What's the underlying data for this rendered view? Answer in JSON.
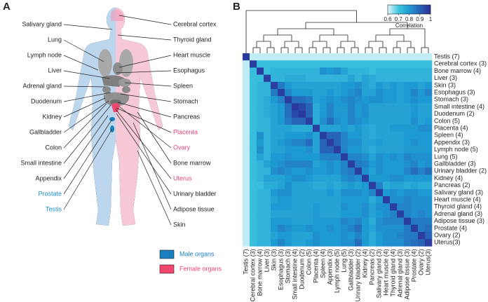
{
  "panel_a": {
    "letter": "A",
    "left_labels": [
      "Salivary gland",
      "Lung",
      "Lymph node",
      "Liver",
      "Adrenal gland",
      "Duodenum",
      "Kidney",
      "Gallbladder",
      "Colon",
      "Small intestine",
      "Appendix",
      "Prostate",
      "Testis"
    ],
    "right_labels": [
      "Cerebral cortex",
      "Thyroid gland",
      "Heart muscle",
      "Esophagus",
      "Spleen",
      "Stomach",
      "Pancreas",
      "Placenta",
      "Ovary",
      "Bone marrow",
      "Uterus",
      "Urinary bladder",
      "Adipose tissue",
      "Skin"
    ],
    "legend": [
      {
        "name": "Male organs",
        "color": "#1a7fc1"
      },
      {
        "name": "Female organs",
        "color": "#f0476e"
      }
    ]
  },
  "chart_data": {
    "type": "heatmap",
    "panel_letter": "B",
    "labels": [
      "Testis (7)",
      "Cerebral cortex (3)",
      "Bone marrow (4)",
      "Liver (3)",
      "Skin (3)",
      "Esophagus (3)",
      "Stomach (3)",
      "Small intestine (4)",
      "Duodenum (2)",
      "Colon (5)",
      "Placenta (4)",
      "Spleen (4)",
      "Appendix (3)",
      "Lymph node (5)",
      "Lung (5)",
      "Gallbladder (3)",
      "Urinary bladder (2)",
      "Kidney (4)",
      "Pancreas (2)",
      "Salivary gland (3)",
      "Heart muscle (4)",
      "Thyroid gland (4)",
      "Adrenal gland (3)",
      "Adipose tissue (3)",
      "Prostate (4)",
      "Ovary (2)",
      "Uterus(3)"
    ],
    "colorbar": {
      "label": "Correlation",
      "lim": [
        0.6,
        1
      ],
      "ticks": [
        0.6,
        0.7,
        0.8,
        0.9,
        1
      ],
      "colors": [
        "#e0f6fa",
        "#3fc6df",
        "#1e9ad2",
        "#2763b7",
        "#2b2e96"
      ]
    },
    "values": [
      [
        0.98,
        0.62,
        0.62,
        0.62,
        0.62,
        0.62,
        0.62,
        0.62,
        0.62,
        0.62,
        0.62,
        0.62,
        0.62,
        0.62,
        0.62,
        0.62,
        0.62,
        0.62,
        0.62,
        0.62,
        0.62,
        0.62,
        0.62,
        0.62,
        0.62,
        0.62,
        0.62
      ],
      [
        0.62,
        0.97,
        0.72,
        0.72,
        0.72,
        0.72,
        0.72,
        0.72,
        0.72,
        0.72,
        0.72,
        0.72,
        0.72,
        0.72,
        0.72,
        0.72,
        0.72,
        0.72,
        0.72,
        0.72,
        0.72,
        0.72,
        0.72,
        0.72,
        0.72,
        0.72,
        0.72
      ],
      [
        0.62,
        0.72,
        0.97,
        0.72,
        0.74,
        0.74,
        0.74,
        0.74,
        0.74,
        0.74,
        0.74,
        0.82,
        0.8,
        0.82,
        0.78,
        0.74,
        0.74,
        0.74,
        0.72,
        0.74,
        0.74,
        0.74,
        0.74,
        0.74,
        0.74,
        0.74,
        0.74
      ],
      [
        0.62,
        0.72,
        0.72,
        0.97,
        0.74,
        0.74,
        0.76,
        0.76,
        0.76,
        0.74,
        0.74,
        0.74,
        0.74,
        0.74,
        0.74,
        0.78,
        0.74,
        0.78,
        0.76,
        0.74,
        0.74,
        0.74,
        0.74,
        0.74,
        0.74,
        0.74,
        0.74
      ],
      [
        0.62,
        0.72,
        0.74,
        0.74,
        0.97,
        0.86,
        0.8,
        0.78,
        0.78,
        0.78,
        0.78,
        0.78,
        0.78,
        0.78,
        0.8,
        0.8,
        0.82,
        0.78,
        0.76,
        0.8,
        0.78,
        0.8,
        0.78,
        0.8,
        0.8,
        0.78,
        0.8
      ],
      [
        0.62,
        0.72,
        0.74,
        0.74,
        0.86,
        0.97,
        0.84,
        0.8,
        0.8,
        0.8,
        0.78,
        0.78,
        0.8,
        0.78,
        0.8,
        0.82,
        0.84,
        0.78,
        0.78,
        0.82,
        0.8,
        0.8,
        0.78,
        0.8,
        0.84,
        0.8,
        0.84
      ],
      [
        0.62,
        0.72,
        0.74,
        0.76,
        0.8,
        0.84,
        0.97,
        0.88,
        0.88,
        0.86,
        0.78,
        0.8,
        0.82,
        0.8,
        0.82,
        0.84,
        0.82,
        0.8,
        0.82,
        0.82,
        0.8,
        0.8,
        0.78,
        0.8,
        0.82,
        0.8,
        0.8
      ],
      [
        0.62,
        0.72,
        0.74,
        0.76,
        0.78,
        0.8,
        0.88,
        0.98,
        0.95,
        0.9,
        0.76,
        0.8,
        0.84,
        0.8,
        0.8,
        0.84,
        0.8,
        0.82,
        0.78,
        0.78,
        0.78,
        0.78,
        0.78,
        0.78,
        0.8,
        0.78,
        0.78
      ],
      [
        0.62,
        0.72,
        0.74,
        0.76,
        0.78,
        0.8,
        0.88,
        0.95,
        0.98,
        0.9,
        0.76,
        0.8,
        0.84,
        0.8,
        0.8,
        0.84,
        0.8,
        0.82,
        0.78,
        0.78,
        0.78,
        0.78,
        0.78,
        0.78,
        0.8,
        0.78,
        0.78
      ],
      [
        0.62,
        0.72,
        0.74,
        0.74,
        0.78,
        0.8,
        0.86,
        0.9,
        0.9,
        0.97,
        0.76,
        0.82,
        0.88,
        0.82,
        0.8,
        0.84,
        0.82,
        0.8,
        0.78,
        0.78,
        0.78,
        0.78,
        0.78,
        0.78,
        0.82,
        0.78,
        0.8
      ],
      [
        0.62,
        0.72,
        0.74,
        0.74,
        0.78,
        0.78,
        0.78,
        0.76,
        0.76,
        0.76,
        0.97,
        0.78,
        0.78,
        0.78,
        0.8,
        0.78,
        0.8,
        0.78,
        0.76,
        0.78,
        0.78,
        0.8,
        0.8,
        0.8,
        0.8,
        0.82,
        0.82
      ],
      [
        0.62,
        0.72,
        0.82,
        0.74,
        0.78,
        0.78,
        0.8,
        0.8,
        0.8,
        0.82,
        0.78,
        0.97,
        0.9,
        0.9,
        0.84,
        0.8,
        0.8,
        0.78,
        0.76,
        0.78,
        0.78,
        0.78,
        0.78,
        0.8,
        0.8,
        0.8,
        0.8
      ],
      [
        0.62,
        0.72,
        0.8,
        0.74,
        0.78,
        0.8,
        0.82,
        0.84,
        0.84,
        0.88,
        0.78,
        0.9,
        0.97,
        0.9,
        0.84,
        0.82,
        0.82,
        0.78,
        0.78,
        0.8,
        0.78,
        0.78,
        0.78,
        0.8,
        0.82,
        0.8,
        0.8
      ],
      [
        0.62,
        0.72,
        0.82,
        0.74,
        0.78,
        0.78,
        0.8,
        0.8,
        0.8,
        0.82,
        0.78,
        0.9,
        0.9,
        0.97,
        0.84,
        0.8,
        0.8,
        0.78,
        0.76,
        0.78,
        0.78,
        0.78,
        0.78,
        0.8,
        0.8,
        0.8,
        0.8
      ],
      [
        0.62,
        0.72,
        0.78,
        0.74,
        0.8,
        0.8,
        0.82,
        0.8,
        0.8,
        0.8,
        0.8,
        0.84,
        0.84,
        0.84,
        0.97,
        0.84,
        0.84,
        0.82,
        0.78,
        0.82,
        0.8,
        0.82,
        0.8,
        0.84,
        0.82,
        0.82,
        0.82
      ],
      [
        0.62,
        0.72,
        0.74,
        0.78,
        0.8,
        0.82,
        0.84,
        0.84,
        0.84,
        0.84,
        0.78,
        0.8,
        0.82,
        0.8,
        0.84,
        0.97,
        0.86,
        0.84,
        0.8,
        0.82,
        0.8,
        0.8,
        0.8,
        0.82,
        0.84,
        0.8,
        0.82
      ],
      [
        0.62,
        0.72,
        0.74,
        0.74,
        0.82,
        0.84,
        0.82,
        0.8,
        0.8,
        0.82,
        0.8,
        0.8,
        0.82,
        0.8,
        0.84,
        0.86,
        0.97,
        0.82,
        0.78,
        0.82,
        0.8,
        0.8,
        0.8,
        0.84,
        0.88,
        0.84,
        0.88
      ],
      [
        0.62,
        0.72,
        0.74,
        0.78,
        0.78,
        0.78,
        0.8,
        0.82,
        0.82,
        0.8,
        0.78,
        0.78,
        0.78,
        0.78,
        0.82,
        0.84,
        0.82,
        0.97,
        0.8,
        0.8,
        0.8,
        0.82,
        0.82,
        0.8,
        0.8,
        0.8,
        0.8
      ],
      [
        0.62,
        0.72,
        0.72,
        0.76,
        0.76,
        0.78,
        0.82,
        0.78,
        0.78,
        0.78,
        0.76,
        0.76,
        0.78,
        0.76,
        0.78,
        0.8,
        0.78,
        0.8,
        0.97,
        0.84,
        0.76,
        0.78,
        0.78,
        0.76,
        0.78,
        0.76,
        0.76
      ],
      [
        0.62,
        0.72,
        0.74,
        0.74,
        0.8,
        0.82,
        0.82,
        0.78,
        0.78,
        0.78,
        0.78,
        0.78,
        0.8,
        0.78,
        0.82,
        0.82,
        0.82,
        0.8,
        0.84,
        0.97,
        0.8,
        0.82,
        0.8,
        0.82,
        0.82,
        0.8,
        0.8
      ],
      [
        0.62,
        0.72,
        0.74,
        0.74,
        0.78,
        0.8,
        0.8,
        0.78,
        0.78,
        0.78,
        0.78,
        0.78,
        0.78,
        0.78,
        0.8,
        0.8,
        0.8,
        0.8,
        0.76,
        0.8,
        0.97,
        0.82,
        0.82,
        0.84,
        0.82,
        0.82,
        0.82
      ],
      [
        0.62,
        0.72,
        0.74,
        0.74,
        0.8,
        0.8,
        0.8,
        0.78,
        0.78,
        0.78,
        0.8,
        0.78,
        0.78,
        0.78,
        0.82,
        0.8,
        0.8,
        0.82,
        0.78,
        0.82,
        0.82,
        0.97,
        0.84,
        0.84,
        0.82,
        0.82,
        0.82
      ],
      [
        0.62,
        0.72,
        0.74,
        0.74,
        0.78,
        0.78,
        0.78,
        0.78,
        0.78,
        0.78,
        0.8,
        0.78,
        0.78,
        0.78,
        0.8,
        0.8,
        0.8,
        0.82,
        0.78,
        0.8,
        0.82,
        0.84,
        0.97,
        0.84,
        0.82,
        0.84,
        0.82
      ],
      [
        0.62,
        0.72,
        0.74,
        0.74,
        0.8,
        0.8,
        0.8,
        0.78,
        0.78,
        0.78,
        0.8,
        0.8,
        0.8,
        0.8,
        0.84,
        0.82,
        0.84,
        0.8,
        0.76,
        0.82,
        0.84,
        0.84,
        0.84,
        0.97,
        0.86,
        0.86,
        0.86
      ],
      [
        0.62,
        0.72,
        0.74,
        0.74,
        0.8,
        0.84,
        0.82,
        0.8,
        0.8,
        0.82,
        0.8,
        0.8,
        0.82,
        0.8,
        0.82,
        0.84,
        0.88,
        0.8,
        0.78,
        0.82,
        0.82,
        0.82,
        0.82,
        0.86,
        0.97,
        0.86,
        0.88
      ],
      [
        0.62,
        0.72,
        0.74,
        0.74,
        0.78,
        0.8,
        0.8,
        0.78,
        0.78,
        0.78,
        0.82,
        0.8,
        0.8,
        0.8,
        0.82,
        0.8,
        0.84,
        0.8,
        0.76,
        0.8,
        0.82,
        0.82,
        0.84,
        0.86,
        0.86,
        0.97,
        0.9
      ],
      [
        0.62,
        0.72,
        0.74,
        0.74,
        0.8,
        0.84,
        0.8,
        0.78,
        0.78,
        0.8,
        0.82,
        0.8,
        0.8,
        0.8,
        0.82,
        0.82,
        0.88,
        0.8,
        0.76,
        0.8,
        0.82,
        0.82,
        0.82,
        0.86,
        0.88,
        0.9,
        0.97
      ]
    ]
  }
}
